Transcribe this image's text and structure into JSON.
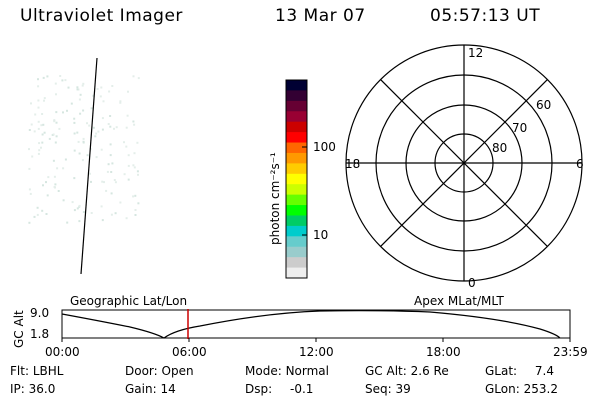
{
  "header": {
    "instrument": "Ultraviolet Imager",
    "date": "13 Mar 07",
    "time": "05:57:13 UT"
  },
  "colorbar": {
    "unit_label": "photon cm⁻²s⁻¹",
    "ticks": [
      "100",
      "10"
    ],
    "colors": [
      "#000033",
      "#330033",
      "#660033",
      "#990033",
      "#cc0000",
      "#ff0000",
      "#ff6600",
      "#ff9900",
      "#ffcc00",
      "#ffff00",
      "#ccff00",
      "#66ff00",
      "#00ff00",
      "#00cc66",
      "#00cccc",
      "#66cccc",
      "#99cccc",
      "#cccccc",
      "#eeeeee"
    ]
  },
  "polar": {
    "mlt_labels": {
      "top": "12",
      "left": "18",
      "right": "6",
      "bottom": "0"
    },
    "lat_labels": [
      "60",
      "70",
      "80"
    ]
  },
  "timeline": {
    "y_axis_label": "GC Alt",
    "y_ticks": [
      "9.0",
      "1.8"
    ],
    "left_title": "Geographic Lat/Lon",
    "right_title": "Apex MLat/MLT",
    "x_ticks": [
      "00:00",
      "06:00",
      "12:00",
      "18:00",
      "23:59"
    ]
  },
  "info": {
    "row1": [
      {
        "label": "Flt:",
        "value": "LBHL"
      },
      {
        "label": "Door:",
        "value": "Open"
      },
      {
        "label": "Mode:",
        "value": "Normal"
      },
      {
        "label": "GC Alt:",
        "value": "2.6 Re"
      },
      {
        "label": "GLat:",
        "value": "7.4"
      }
    ],
    "row2": [
      {
        "label": "IP:",
        "value": "36.0"
      },
      {
        "label": "Gain:",
        "value": "14"
      },
      {
        "label": "Dsp:",
        "value": "-0.1"
      },
      {
        "label": "Seq:",
        "value": "39"
      },
      {
        "label": "GLon:",
        "value": "253.2"
      }
    ]
  }
}
